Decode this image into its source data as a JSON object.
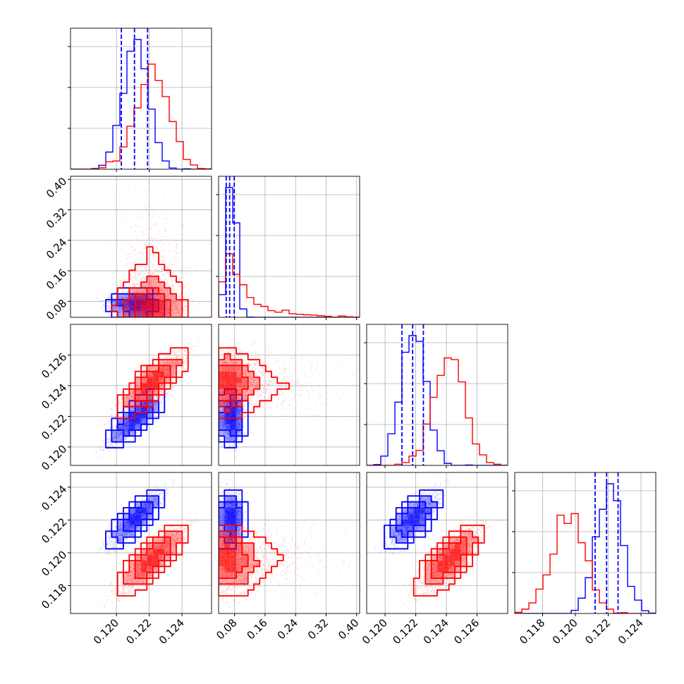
{
  "colors": {
    "blue": "#0000ff",
    "red": "#ff0000",
    "grid": "#b0b0b0"
  },
  "chart_data": {
    "type": "corner",
    "grid": true,
    "series": [
      {
        "color": "#0000ff",
        "mean": [
          0.1212,
          0.072,
          0.1219,
          0.1221
        ],
        "sd": [
          0.0008,
          0.012,
          0.0008,
          0.0008
        ],
        "corr": 0.9
      },
      {
        "color": "#ff0000",
        "mean": [
          0.1222,
          0.095,
          0.1242,
          0.1196
        ],
        "sd": [
          0.001,
          0.06,
          0.001,
          0.001
        ],
        "corr": 0.9
      }
    ],
    "quantile_lines": {
      "color": "#0000ff",
      "values": [
        [
          0.1203,
          0.1211,
          0.1219
        ],
        [
          0.058,
          0.067,
          0.079
        ],
        [
          0.1211,
          0.1218,
          0.1225
        ],
        [
          0.1212,
          0.1219,
          0.1226
        ]
      ]
    },
    "axes": [
      {
        "range": [
          0.1172,
          0.1258
        ],
        "ticks": [
          "0.120",
          "0.122",
          "0.124"
        ],
        "tick_values": [
          0.12,
          0.122,
          0.124
        ]
      },
      {
        "range": [
          0.038,
          0.408
        ],
        "ticks": [
          "0.08",
          "0.16",
          "0.24",
          "0.32",
          "0.40"
        ],
        "tick_values": [
          0.08,
          0.16,
          0.24,
          0.32,
          0.4
        ]
      },
      {
        "range": [
          0.1188,
          0.128
        ],
        "ticks": [
          "0.120",
          "0.122",
          "0.124",
          "0.126"
        ],
        "tick_values": [
          0.12,
          0.122,
          0.124,
          0.126
        ]
      },
      {
        "range": [
          0.1163,
          0.1249
        ],
        "ticks": [
          "0.118",
          "0.120",
          "0.122",
          "0.124"
        ],
        "tick_values": [
          0.118,
          0.12,
          0.122,
          0.124
        ]
      }
    ],
    "xlabels": [
      "",
      "",
      "",
      ""
    ],
    "ylabels": [
      "",
      "",
      "",
      ""
    ]
  }
}
